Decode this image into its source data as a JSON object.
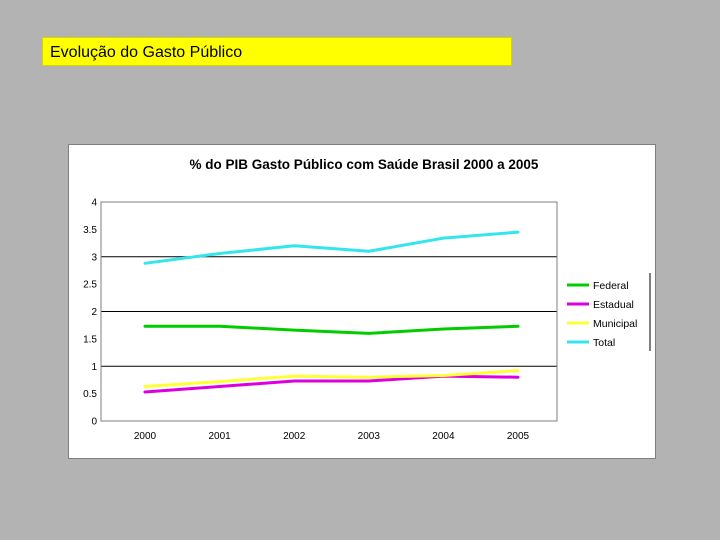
{
  "slide": {
    "title": "Evolução do Gasto Público"
  },
  "chart_data": {
    "type": "line",
    "title": "% do PIB Gasto Público com Saúde Brasil 2000 a 2005",
    "xlabel": "",
    "ylabel": "",
    "categories": [
      "2000",
      "2001",
      "2002",
      "2003",
      "2004",
      "2005"
    ],
    "ylim": [
      0,
      4
    ],
    "yticks": [
      "0",
      "0.5",
      "1",
      "1.5",
      "2",
      "2.5",
      "3",
      "3.5",
      "4"
    ],
    "gridlines": [
      1,
      2,
      3,
      4
    ],
    "legend_position": "right",
    "series": [
      {
        "name": "Federal",
        "color": "#00cc00",
        "values": [
          1.73,
          1.73,
          1.66,
          1.6,
          1.68,
          1.73
        ]
      },
      {
        "name": "Estadual",
        "color": "#dd00dd",
        "values": [
          0.53,
          0.63,
          0.73,
          0.73,
          0.82,
          0.8
        ]
      },
      {
        "name": "Municipal",
        "color": "#ffff33",
        "values": [
          0.63,
          0.72,
          0.82,
          0.8,
          0.83,
          0.92
        ]
      },
      {
        "name": "Total",
        "color": "#33e6ee",
        "values": [
          2.88,
          3.06,
          3.2,
          3.1,
          3.34,
          3.45
        ]
      }
    ]
  }
}
